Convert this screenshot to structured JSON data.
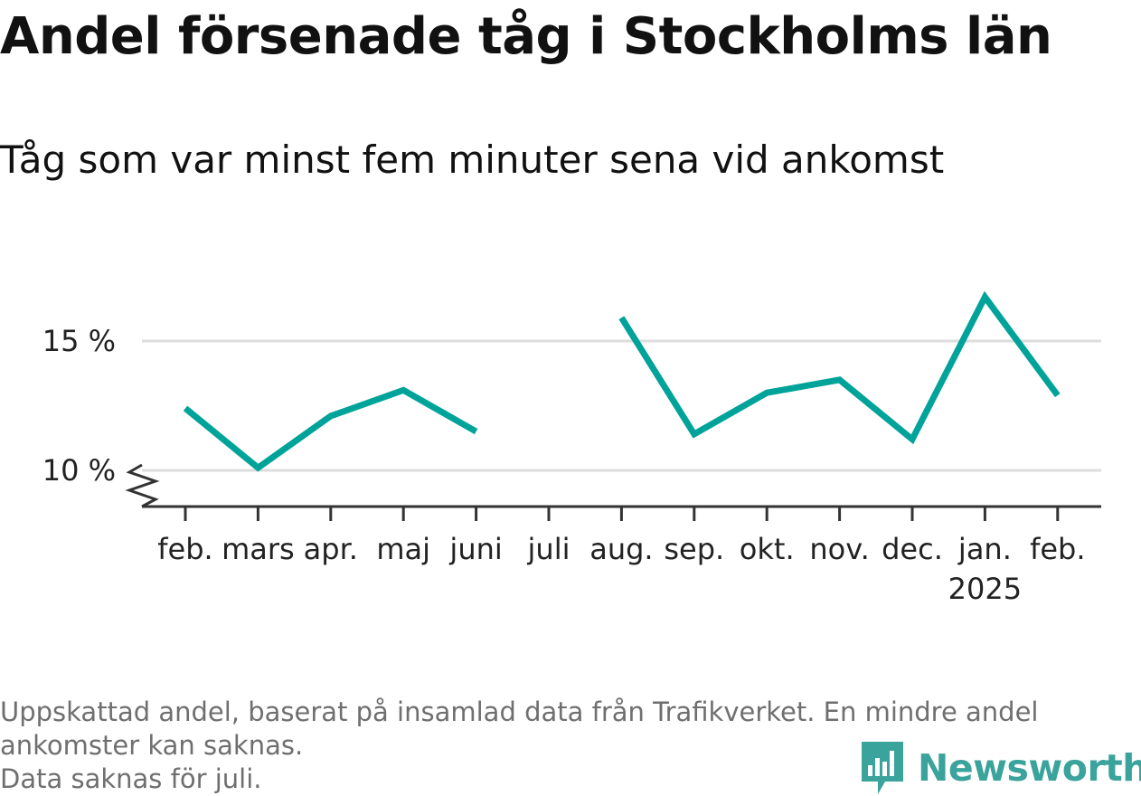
{
  "title": "Andel försenade tåg i Stockholms län",
  "subtitle": "Tåg som var minst fem minuter sena vid ankomst",
  "footer": {
    "line1": "Uppskattad andel, baserat på insamlad data från Trafikverket. En mindre andel",
    "line2": "ankomster kan saknas.",
    "line3": "Data saknas för juli."
  },
  "logo": {
    "text": "Newsworthy",
    "icon": "newsworthy-bar-chart-icon",
    "color": "#3aa39b"
  },
  "colors": {
    "line": "#00a39a",
    "grid": "#dddddd",
    "axis": "#333333"
  },
  "chart_data": {
    "type": "line",
    "title": "Andel försenade tåg i Stockholms län",
    "subtitle": "Tåg som var minst fem minuter sena vid ankomst",
    "categories": [
      "feb.",
      "mars",
      "apr.",
      "maj",
      "juni",
      "juli",
      "aug.",
      "sep.",
      "okt.",
      "nov.",
      "dec.",
      "jan.",
      "feb."
    ],
    "category_sublabels": [
      "",
      "",
      "",
      "",
      "",
      "",
      "",
      "",
      "",
      "",
      "",
      "2025",
      ""
    ],
    "series": [
      {
        "values": [
          12.4,
          10.1,
          12.1,
          13.1,
          11.5,
          null,
          15.9,
          11.4,
          13.0,
          13.5,
          11.2,
          16.7,
          12.9
        ]
      }
    ],
    "yticks": [
      10,
      15
    ],
    "ytick_labels": [
      "10 %",
      "15 %"
    ],
    "ylim": [
      8.6,
      17.5
    ],
    "y_axis_break": true,
    "grid": true,
    "legend": "none"
  }
}
